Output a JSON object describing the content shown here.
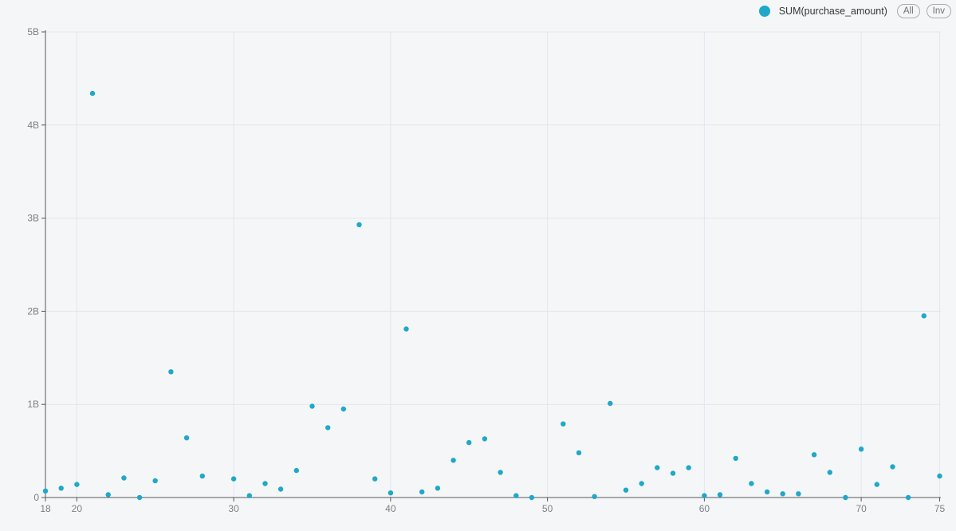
{
  "legend": {
    "series_label": "SUM(purchase_amount)",
    "all_button_label": "All",
    "inv_button_label": "Inv",
    "marker_color": "#1FA8C9"
  },
  "chart_data": {
    "type": "scatter",
    "title": "",
    "xlabel": "",
    "ylabel": "",
    "grid": true,
    "legend_position": "top-right",
    "x_range": [
      18,
      75
    ],
    "y_range_billions": [
      0,
      5
    ],
    "x_ticks": [
      18,
      20,
      30,
      40,
      50,
      60,
      70,
      75
    ],
    "y_ticks": [
      {
        "value": 0,
        "label": "0"
      },
      {
        "value": 1,
        "label": "1B"
      },
      {
        "value": 2,
        "label": "2B"
      },
      {
        "value": 3,
        "label": "3B"
      },
      {
        "value": 4,
        "label": "4B"
      },
      {
        "value": 5,
        "label": "5B"
      }
    ],
    "series": [
      {
        "name": "SUM(purchase_amount)",
        "color": "#1FA8C9",
        "y_unit": "billions",
        "points": [
          [
            18,
            0.07
          ],
          [
            19,
            0.1
          ],
          [
            20,
            0.14
          ],
          [
            21,
            4.34
          ],
          [
            22,
            0.03
          ],
          [
            23,
            0.21
          ],
          [
            24,
            0.0
          ],
          [
            25,
            0.18
          ],
          [
            26,
            1.35
          ],
          [
            27,
            0.64
          ],
          [
            28,
            0.23
          ],
          [
            30,
            0.2
          ],
          [
            31,
            0.02
          ],
          [
            32,
            0.15
          ],
          [
            33,
            0.09
          ],
          [
            34,
            0.29
          ],
          [
            35,
            0.98
          ],
          [
            36,
            0.75
          ],
          [
            37,
            0.95
          ],
          [
            38,
            2.93
          ],
          [
            39,
            0.2
          ],
          [
            40,
            0.05
          ],
          [
            41,
            1.81
          ],
          [
            42,
            0.06
          ],
          [
            43,
            0.1
          ],
          [
            44,
            0.4
          ],
          [
            45,
            0.59
          ],
          [
            46,
            0.63
          ],
          [
            47,
            0.27
          ],
          [
            48,
            0.02
          ],
          [
            49,
            0.0
          ],
          [
            51,
            0.79
          ],
          [
            52,
            0.48
          ],
          [
            53,
            0.01
          ],
          [
            54,
            1.01
          ],
          [
            55,
            0.08
          ],
          [
            56,
            0.15
          ],
          [
            57,
            0.32
          ],
          [
            58,
            0.26
          ],
          [
            59,
            0.32
          ],
          [
            60,
            0.02
          ],
          [
            61,
            0.03
          ],
          [
            62,
            0.42
          ],
          [
            63,
            0.15
          ],
          [
            64,
            0.06
          ],
          [
            65,
            0.04
          ],
          [
            66,
            0.04
          ],
          [
            67,
            0.46
          ],
          [
            68,
            0.27
          ],
          [
            69,
            0.0
          ],
          [
            70,
            0.52
          ],
          [
            71,
            0.14
          ],
          [
            72,
            0.33
          ],
          [
            73,
            0.0
          ],
          [
            74,
            1.95
          ],
          [
            75,
            0.23
          ]
        ]
      }
    ],
    "colors": {
      "background": "#f5f6f7",
      "axis": "#55585a",
      "gridline": "#e2e6ef",
      "tick_label": "#7b8087"
    }
  }
}
